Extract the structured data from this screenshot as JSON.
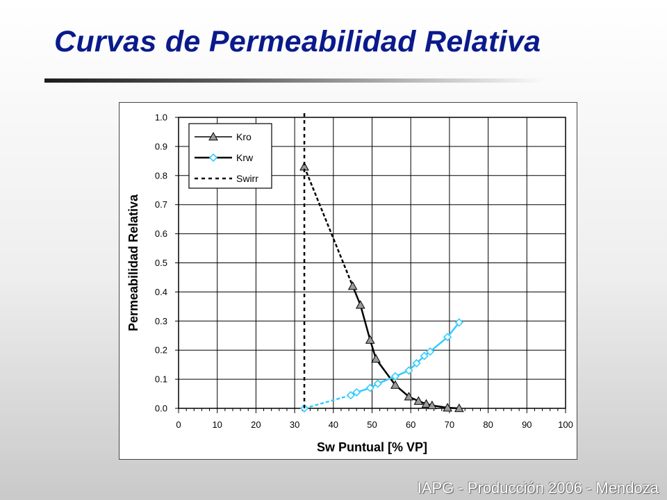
{
  "slide": {
    "title": "Curvas de Permeabilidad Relativa",
    "footer": "IAPG - Producción 2006 - Mendoza"
  },
  "colors": {
    "title": "#0a1a8c",
    "kro": "#000000",
    "kro_marker_fill": "#9a9a9a",
    "krw": "#33ccff",
    "swirr": "#000000"
  },
  "chart_data": {
    "type": "line",
    "xlabel": "Sw Puntual [% VP]",
    "ylabel": "Permeabilidad Relativa",
    "xlim": [
      0,
      100
    ],
    "ylim": [
      0,
      1.0
    ],
    "x_major_step": 10,
    "x_minor_step": 2,
    "y_major_step": 0.1,
    "grid": true,
    "legend_placement": "top-left",
    "x_ticks": [
      "0",
      "10",
      "20",
      "30",
      "40",
      "50",
      "60",
      "70",
      "80",
      "90",
      "100"
    ],
    "y_ticks": [
      "0.0",
      "0.1",
      "0.2",
      "0.3",
      "0.4",
      "0.5",
      "0.6",
      "0.7",
      "0.8",
      "0.9",
      "1.0"
    ],
    "series": [
      {
        "name": "Kro",
        "marker": "triangle",
        "points": [
          [
            32.5,
            0.83
          ],
          [
            45,
            0.42
          ],
          [
            47,
            0.355
          ],
          [
            49.5,
            0.235
          ],
          [
            51,
            0.17
          ],
          [
            56,
            0.08
          ],
          [
            59.5,
            0.04
          ],
          [
            62,
            0.025
          ],
          [
            64,
            0.015
          ],
          [
            65.5,
            0.01
          ],
          [
            69.5,
            0.002
          ],
          [
            72.5,
            0.0
          ]
        ]
      },
      {
        "name": "Krw",
        "marker": "diamond",
        "points": [
          [
            32.5,
            0.0
          ],
          [
            44.5,
            0.045
          ],
          [
            46,
            0.055
          ],
          [
            49.5,
            0.07
          ],
          [
            51.5,
            0.085
          ],
          [
            56,
            0.11
          ],
          [
            59.5,
            0.13
          ],
          [
            61.5,
            0.155
          ],
          [
            63.5,
            0.18
          ],
          [
            65,
            0.195
          ],
          [
            69.5,
            0.245
          ],
          [
            72.5,
            0.295
          ]
        ]
      },
      {
        "name": "Swirr",
        "style": "dashed-vertical",
        "x": 32.5
      }
    ]
  }
}
